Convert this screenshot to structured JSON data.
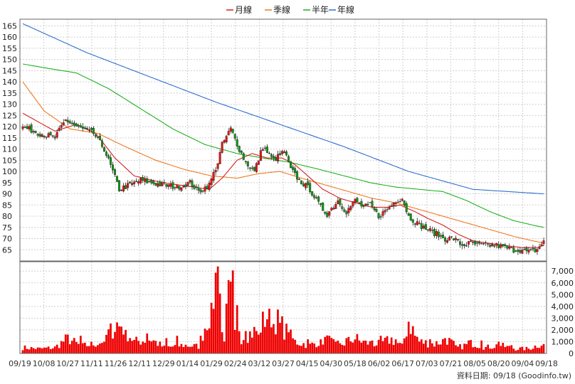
{
  "chart_data": {
    "type": "candlestick",
    "legend": {
      "position": "top-center",
      "items": [
        {
          "name": "月線",
          "color": "#d42020"
        },
        {
          "name": "季線",
          "color": "#f07820"
        },
        {
          "name": "半年",
          "color": "#22b022"
        },
        {
          "name": "年線",
          "color": "#2f6fd0"
        }
      ]
    },
    "price_axis": {
      "ylim": [
        60,
        168
      ],
      "ticks": [
        65,
        70,
        75,
        80,
        85,
        90,
        95,
        100,
        105,
        110,
        115,
        120,
        125,
        130,
        135,
        140,
        145,
        150,
        155,
        160,
        165
      ]
    },
    "volume_axis": {
      "ylim": [
        0,
        7800
      ],
      "ticks": [
        0,
        1000,
        2000,
        3000,
        4000,
        5000,
        6000,
        7000
      ],
      "tick_labels": [
        "0",
        "1,000",
        "2,000",
        "3,000",
        "4,000",
        "5,000",
        "6,000",
        "7,000"
      ]
    },
    "x_axis": {
      "n": 244,
      "tick_labels": [
        "09/19",
        "10/08",
        "10/27",
        "11/11",
        "11/26",
        "12/11",
        "12/29",
        "01/14",
        "01/29",
        "02/24",
        "03/12",
        "03/27",
        "04/15",
        "04/30",
        "05/18",
        "06/02",
        "06/17",
        "07/03",
        "07/21",
        "08/05",
        "08/20",
        "09/04",
        "09/18"
      ]
    },
    "grid": true,
    "colors": {
      "up": "#ee1111",
      "down": "#119911",
      "volume": "#ee0000"
    },
    "anchors": {
      "close": [
        [
          0,
          120
        ],
        [
          8,
          117
        ],
        [
          15,
          115
        ],
        [
          20,
          123
        ],
        [
          25,
          120
        ],
        [
          33,
          117
        ],
        [
          38,
          110
        ],
        [
          42,
          100
        ],
        [
          45,
          92
        ],
        [
          50,
          94
        ],
        [
          55,
          96
        ],
        [
          60,
          95
        ],
        [
          65,
          94
        ],
        [
          72,
          93
        ],
        [
          78,
          95
        ],
        [
          82,
          91
        ],
        [
          87,
          94
        ],
        [
          91,
          104
        ],
        [
          93,
          112
        ],
        [
          97,
          119
        ],
        [
          101,
          110
        ],
        [
          104,
          104
        ],
        [
          108,
          100
        ],
        [
          112,
          111
        ],
        [
          117,
          105
        ],
        [
          122,
          109
        ],
        [
          125,
          101
        ],
        [
          129,
          96
        ],
        [
          134,
          92
        ],
        [
          139,
          84
        ],
        [
          142,
          81
        ],
        [
          147,
          87
        ],
        [
          151,
          82
        ],
        [
          155,
          87
        ],
        [
          159,
          84
        ],
        [
          162,
          85
        ],
        [
          166,
          80
        ],
        [
          170,
          83
        ],
        [
          174,
          87
        ],
        [
          177,
          88
        ],
        [
          180,
          80
        ],
        [
          185,
          76
        ],
        [
          189,
          74
        ],
        [
          193,
          72
        ],
        [
          197,
          70
        ],
        [
          201,
          70
        ],
        [
          205,
          67
        ],
        [
          209,
          68
        ],
        [
          213,
          67
        ],
        [
          217,
          67
        ],
        [
          221,
          67
        ],
        [
          225,
          66
        ],
        [
          229,
          65
        ],
        [
          232,
          65
        ],
        [
          236,
          64
        ],
        [
          240,
          65
        ],
        [
          243,
          69
        ]
      ],
      "ma_month": [
        [
          0,
          126
        ],
        [
          15,
          118
        ],
        [
          25,
          121
        ],
        [
          34,
          117
        ],
        [
          43,
          106
        ],
        [
          52,
          98
        ],
        [
          65,
          95
        ],
        [
          80,
          93
        ],
        [
          87,
          92
        ],
        [
          93,
          97
        ],
        [
          100,
          105
        ],
        [
          107,
          108
        ],
        [
          114,
          106
        ],
        [
          121,
          106
        ],
        [
          127,
          103
        ],
        [
          133,
          98
        ],
        [
          140,
          92
        ],
        [
          148,
          88
        ],
        [
          155,
          86
        ],
        [
          163,
          84
        ],
        [
          170,
          84
        ],
        [
          176,
          85
        ],
        [
          183,
          82
        ],
        [
          189,
          79
        ],
        [
          196,
          76
        ],
        [
          203,
          72
        ],
        [
          210,
          69
        ],
        [
          217,
          68
        ],
        [
          224,
          67
        ],
        [
          233,
          66
        ],
        [
          240,
          66
        ],
        [
          243,
          67
        ]
      ],
      "ma_quarter": [
        [
          0,
          140
        ],
        [
          10,
          127
        ],
        [
          22,
          119
        ],
        [
          35,
          117
        ],
        [
          48,
          111
        ],
        [
          62,
          105
        ],
        [
          75,
          101
        ],
        [
          88,
          98
        ],
        [
          100,
          97
        ],
        [
          110,
          99
        ],
        [
          120,
          100
        ],
        [
          130,
          97
        ],
        [
          141,
          94
        ],
        [
          152,
          91
        ],
        [
          163,
          88
        ],
        [
          174,
          86
        ],
        [
          185,
          83
        ],
        [
          196,
          80
        ],
        [
          207,
          77
        ],
        [
          218,
          74
        ],
        [
          229,
          71
        ],
        [
          238,
          69
        ],
        [
          243,
          68
        ]
      ],
      "ma_half": [
        [
          0,
          148
        ],
        [
          12,
          146
        ],
        [
          25,
          144
        ],
        [
          40,
          137
        ],
        [
          55,
          128
        ],
        [
          70,
          119
        ],
        [
          85,
          112
        ],
        [
          100,
          108
        ],
        [
          112,
          106
        ],
        [
          125,
          104
        ],
        [
          138,
          101
        ],
        [
          150,
          98
        ],
        [
          162,
          95
        ],
        [
          174,
          93
        ],
        [
          185,
          92
        ],
        [
          196,
          91
        ],
        [
          207,
          87
        ],
        [
          218,
          82
        ],
        [
          229,
          78
        ],
        [
          238,
          76
        ],
        [
          243,
          75
        ]
      ],
      "ma_year": [
        [
          0,
          166
        ],
        [
          30,
          153
        ],
        [
          60,
          142
        ],
        [
          90,
          131
        ],
        [
          120,
          121
        ],
        [
          150,
          111
        ],
        [
          180,
          100
        ],
        [
          210,
          92
        ],
        [
          243,
          90
        ]
      ],
      "volume": [
        [
          0,
          500
        ],
        [
          8,
          400
        ],
        [
          15,
          500
        ],
        [
          21,
          1300
        ],
        [
          27,
          600
        ],
        [
          36,
          900
        ],
        [
          45,
          2700
        ],
        [
          52,
          1000
        ],
        [
          60,
          1200
        ],
        [
          66,
          500
        ],
        [
          75,
          700
        ],
        [
          82,
          600
        ],
        [
          88,
          4000
        ],
        [
          91,
          7200
        ],
        [
          94,
          1500
        ],
        [
          97,
          6200
        ],
        [
          102,
          1400
        ],
        [
          110,
          2000
        ],
        [
          115,
          3600
        ],
        [
          120,
          2500
        ],
        [
          127,
          1000
        ],
        [
          134,
          700
        ],
        [
          141,
          1200
        ],
        [
          148,
          700
        ],
        [
          155,
          1300
        ],
        [
          160,
          900
        ],
        [
          166,
          800
        ],
        [
          172,
          1200
        ],
        [
          177,
          600
        ],
        [
          180,
          2700
        ],
        [
          185,
          1000
        ],
        [
          192,
          800
        ],
        [
          198,
          1200
        ],
        [
          203,
          500
        ],
        [
          210,
          900
        ],
        [
          216,
          500
        ],
        [
          222,
          700
        ],
        [
          230,
          400
        ],
        [
          236,
          400
        ],
        [
          243,
          900
        ]
      ]
    },
    "spikes": [
      [
        21,
        1600
      ],
      [
        27,
        1500
      ],
      [
        38,
        1000
      ],
      [
        45,
        2300
      ],
      [
        48,
        2000
      ],
      [
        58,
        1700
      ],
      [
        67,
        1300
      ],
      [
        72,
        1500
      ],
      [
        88,
        4300
      ],
      [
        91,
        7400
      ],
      [
        93,
        1800
      ],
      [
        97,
        6100
      ],
      [
        99,
        2000
      ],
      [
        104,
        1900
      ],
      [
        110,
        1600
      ],
      [
        115,
        3800
      ],
      [
        117,
        2500
      ],
      [
        120,
        2600
      ],
      [
        124,
        1800
      ],
      [
        133,
        1200
      ],
      [
        139,
        1200
      ],
      [
        143,
        1500
      ],
      [
        146,
        1000
      ],
      [
        151,
        1300
      ],
      [
        157,
        1100
      ],
      [
        163,
        1100
      ],
      [
        167,
        1500
      ],
      [
        174,
        1200
      ],
      [
        180,
        2700
      ],
      [
        183,
        1500
      ],
      [
        190,
        1200
      ],
      [
        197,
        1300
      ],
      [
        202,
        700
      ],
      [
        208,
        1100
      ],
      [
        214,
        1100
      ],
      [
        222,
        1000
      ],
      [
        228,
        700
      ],
      [
        243,
        800
      ]
    ],
    "footer": "資料日期: 09/18 (Goodinfo.tw)"
  }
}
